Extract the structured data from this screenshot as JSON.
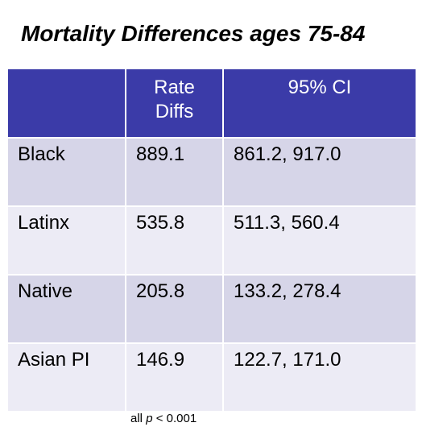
{
  "title": "Mortality Differences ages 75-84",
  "table": {
    "headers": [
      "",
      "Rate\nDiffs",
      "95% CI"
    ],
    "rows": [
      {
        "group": "Black",
        "rate_diff": "889.1",
        "ci": "861.2, 917.0"
      },
      {
        "group": "Latinx",
        "rate_diff": "535.8",
        "ci": "511.3, 560.4"
      },
      {
        "group": "Native",
        "rate_diff": "205.8",
        "ci": "133.2, 278.4"
      },
      {
        "group": "Asian PI",
        "rate_diff": "146.9",
        "ci": "122.7, 171.0"
      }
    ]
  },
  "footnote": {
    "prefix": "all ",
    "variable": "p",
    "suffix": " < 0.001"
  },
  "colors": {
    "header_bg": "#3b3ba8",
    "header_text": "#ffffff",
    "row_odd_bg": "#d6d5e8",
    "row_even_bg": "#ecebf5"
  }
}
